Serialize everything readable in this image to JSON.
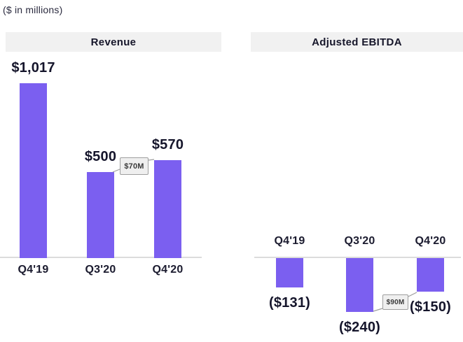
{
  "units_label": "($ in millions)",
  "colors": {
    "bar_purple": "#7B5FF0",
    "header_background": "#F1F1F1",
    "text_dark": "#191927",
    "baseline_gray": "#DCDCDC",
    "callout_background": "#EFEFEF",
    "callout_border": "#9E9E9E"
  },
  "chart_data": [
    {
      "type": "bar",
      "title": "Revenue",
      "categories": [
        "Q4'19",
        "Q3'20",
        "Q4'20"
      ],
      "values": [
        1017,
        500,
        570
      ],
      "value_labels": [
        "$1,017",
        "$500",
        "$570"
      ],
      "xlabel": "",
      "ylabel": "",
      "units": "$ in millions",
      "value_axis_visible": false,
      "grid": false,
      "category_labels_position": "below-baseline",
      "annotation": {
        "label": "$70M",
        "from_category": "Q3'20",
        "to_category": "Q4'20"
      }
    },
    {
      "type": "bar",
      "title": "Adjusted EBITDA",
      "categories": [
        "Q4'19",
        "Q3'20",
        "Q4'20"
      ],
      "values": [
        -131,
        -240,
        -150
      ],
      "value_labels": [
        "($131)",
        "($240)",
        "($150)"
      ],
      "xlabel": "",
      "ylabel": "",
      "units": "$ in millions",
      "value_axis_visible": false,
      "grid": false,
      "category_labels_position": "above-baseline",
      "annotation": {
        "label": "$90M",
        "from_category": "Q3'20",
        "to_category": "Q4'20"
      }
    }
  ]
}
